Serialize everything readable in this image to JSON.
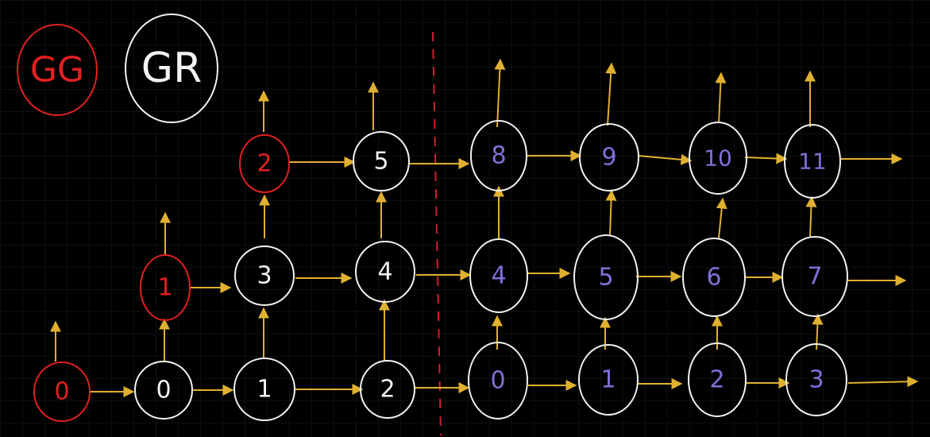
{
  "colors": {
    "background": "#000000",
    "grid": "#222222",
    "gg": "#e02020",
    "gr": "#f2f2f2",
    "arrow": "#e0b030",
    "purple_text": "#8070d8",
    "divider": "#d02030"
  },
  "legend": [
    {
      "label": "GG",
      "color_key": "gg"
    },
    {
      "label": "GR",
      "color_key": "gr"
    }
  ],
  "nodes": {
    "red": [
      "0",
      "1",
      "2"
    ],
    "white_left": [
      "0",
      "1",
      "2",
      "3",
      "4",
      "5"
    ],
    "purple_right": [
      "0",
      "1",
      "2",
      "3",
      "4",
      "5",
      "6",
      "7",
      "8",
      "9",
      "10",
      "11"
    ]
  }
}
